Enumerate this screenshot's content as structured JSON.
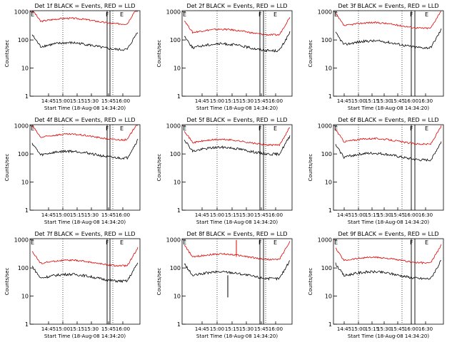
{
  "chart_data": [
    {
      "type": "line",
      "title": "Det 1f BLACK = Events, RED = LLD",
      "variant": "a",
      "level_black": 60,
      "level_red": 470,
      "marker_time": "15:45",
      "spike": false
    },
    {
      "type": "line",
      "title": "Det 2f BLACK = Events, RED = LLD",
      "variant": "b",
      "level_black": 55,
      "level_red": 190,
      "marker_time": "15:45",
      "spike": false
    },
    {
      "type": "line",
      "title": "Det 3f BLACK = Events, RED = LLD",
      "variant": "c",
      "level_black": 70,
      "level_red": 330,
      "marker_time": "15:50",
      "spike": false
    },
    {
      "type": "line",
      "title": "Det 4f BLACK = Events, RED = LLD",
      "variant": "a",
      "level_black": 95,
      "level_red": 400,
      "marker_time": "15:45",
      "spike": false
    },
    {
      "type": "line",
      "title": "Det 5f BLACK = Events, RED = LLD",
      "variant": "b",
      "level_black": 130,
      "level_red": 260,
      "marker_time": "15:45",
      "spike": false
    },
    {
      "type": "line",
      "title": "Det 6f BLACK = Events, RED = LLD",
      "variant": "c",
      "level_black": 80,
      "level_red": 280,
      "marker_time": "15:50",
      "spike": false
    },
    {
      "type": "line",
      "title": "Det 7f BLACK = Events, RED = LLD",
      "variant": "a",
      "level_black": 45,
      "level_red": 150,
      "marker_time": "15:45",
      "spike": false
    },
    {
      "type": "line",
      "title": "Det 8f BLACK = Events, RED = LLD",
      "variant": "b",
      "level_black": 55,
      "level_red": 250,
      "marker_time": "15:45",
      "spike": true
    },
    {
      "type": "line",
      "title": "Det 9f BLACK = Events, RED = LLD",
      "variant": "c",
      "level_black": 55,
      "level_red": 190,
      "marker_time": "15:50",
      "spike": false
    }
  ],
  "shared": {
    "ylabel": "Counts/sec",
    "yticks": [
      {
        "v": 1,
        "label": "1"
      },
      {
        "v": 10,
        "label": "10"
      },
      {
        "v": 100,
        "label": "100"
      },
      {
        "v": 1000,
        "label": "1000"
      }
    ],
    "ylim": [
      1,
      1100
    ],
    "yscale": "log",
    "xlabel": "Start Time (18-Aug-08 14:34:20)",
    "xtick_sets": {
      "a": [
        "14:45",
        "15:00",
        "15:15",
        "15:30",
        "15:45",
        "16:00"
      ],
      "b": [
        "14:45",
        "15:00",
        "15:15",
        "15:30",
        "15:45",
        "16:00"
      ],
      "c": [
        "14:45",
        "15:00",
        "15:15",
        "15:30",
        "15:45",
        "16:00",
        "16:30"
      ]
    },
    "marker_labels": [
      "F",
      "E"
    ]
  }
}
